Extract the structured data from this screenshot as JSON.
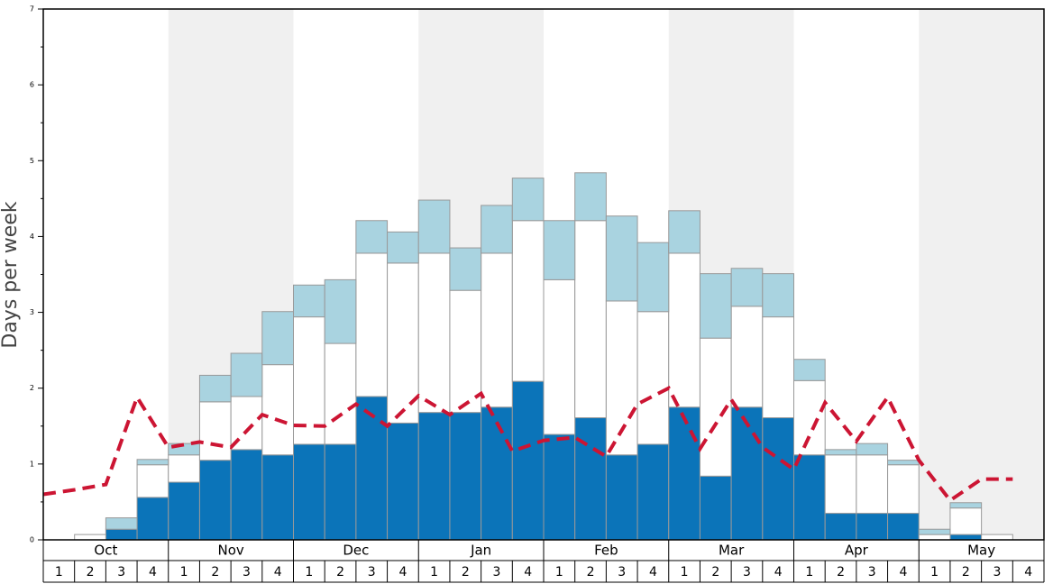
{
  "chart_data": {
    "type": "bar",
    "stacked": true,
    "y_label": "Days per week",
    "months": [
      "Oct",
      "Nov",
      "Dec",
      "Jan",
      "Feb",
      "Mar",
      "Apr",
      "May"
    ],
    "categories": [
      "1",
      "2",
      "3",
      "4",
      "1",
      "2",
      "3",
      "4",
      "1",
      "2",
      "3",
      "4",
      "1",
      "2",
      "3",
      "4",
      "1",
      "2",
      "3",
      "4",
      "1",
      "2",
      "3",
      "4",
      "1",
      "2",
      "3",
      "4",
      "1",
      "2",
      "3",
      "4"
    ],
    "ylim": [
      0,
      7
    ],
    "yticks": [
      0,
      1,
      2,
      3,
      4,
      5,
      6,
      7
    ],
    "yminor_ticks": [
      0.5,
      1.5,
      2.5,
      3.5,
      4.5,
      5.5,
      6.5
    ],
    "shade_months": true,
    "series": [
      {
        "type": "bar",
        "color": "#0b74b9",
        "values": [
          0,
          0,
          0.14,
          0.56,
          0.76,
          1.05,
          1.19,
          1.12,
          1.26,
          1.26,
          1.89,
          1.54,
          1.68,
          1.68,
          1.75,
          2.09,
          1.39,
          1.61,
          1.12,
          1.26,
          1.75,
          0.84,
          1.75,
          1.61,
          1.12,
          0.35,
          0.35,
          0.35,
          0,
          0.07,
          0,
          0
        ]
      },
      {
        "type": "bar",
        "color": "#ffffff",
        "values": [
          0,
          0.07,
          0,
          0.43,
          0.36,
          0.77,
          0.7,
          1.19,
          1.68,
          1.33,
          1.89,
          2.11,
          2.1,
          1.61,
          2.03,
          2.12,
          2.04,
          2.6,
          2.03,
          1.75,
          2.03,
          1.82,
          1.33,
          1.33,
          0.98,
          0.77,
          0.77,
          0.64,
          0.07,
          0.35,
          0.07,
          0
        ]
      },
      {
        "type": "bar",
        "color": "#a9d3e0",
        "values": [
          0,
          0,
          0.15,
          0.07,
          0.15,
          0.35,
          0.57,
          0.7,
          0.42,
          0.84,
          0.43,
          0.41,
          0.7,
          0.56,
          0.63,
          0.56,
          0.78,
          0.63,
          1.12,
          0.91,
          0.56,
          0.85,
          0.5,
          0.57,
          0.28,
          0.07,
          0.15,
          0.06,
          0.07,
          0.07,
          0,
          0
        ]
      },
      {
        "type": "line",
        "color": "#cc1533",
        "dashed": true,
        "values": [
          0.6,
          0.66,
          0.73,
          1.88,
          1.22,
          1.29,
          1.22,
          1.65,
          1.51,
          1.5,
          1.79,
          1.5,
          1.9,
          1.65,
          1.93,
          1.17,
          1.31,
          1.35,
          1.1,
          1.79,
          2.0,
          1.2,
          1.85,
          1.22,
          0.93,
          1.81,
          1.3,
          1.88,
          1.05,
          0.52,
          0.8,
          0.8
        ]
      }
    ]
  }
}
